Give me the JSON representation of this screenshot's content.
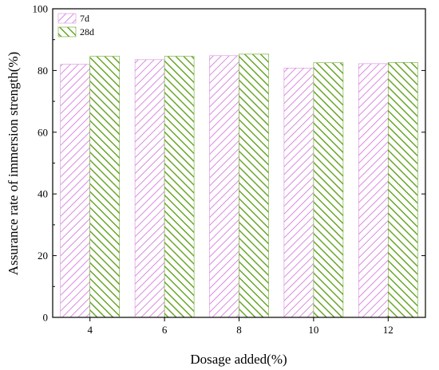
{
  "chart_data": {
    "type": "bar",
    "xlabel": "Dosage added(%)",
    "ylabel": "Assurance rate of immersion strength(%)",
    "categories": [
      "4",
      "6",
      "8",
      "10",
      "12"
    ],
    "ylim": [
      0,
      100
    ],
    "yticks": [
      0,
      20,
      40,
      60,
      80,
      100
    ],
    "grid": false,
    "legend_position": "top-left",
    "series": [
      {
        "name": "7d",
        "values": [
          82.0,
          83.5,
          84.8,
          80.8,
          82.2
        ],
        "color": "#d98be0",
        "pattern": "diagonal-hatch"
      },
      {
        "name": "28d",
        "values": [
          84.6,
          84.6,
          85.3,
          82.5,
          82.6
        ],
        "color": "#6aa62a",
        "pattern": "diagonal-hatch-reverse"
      }
    ]
  }
}
